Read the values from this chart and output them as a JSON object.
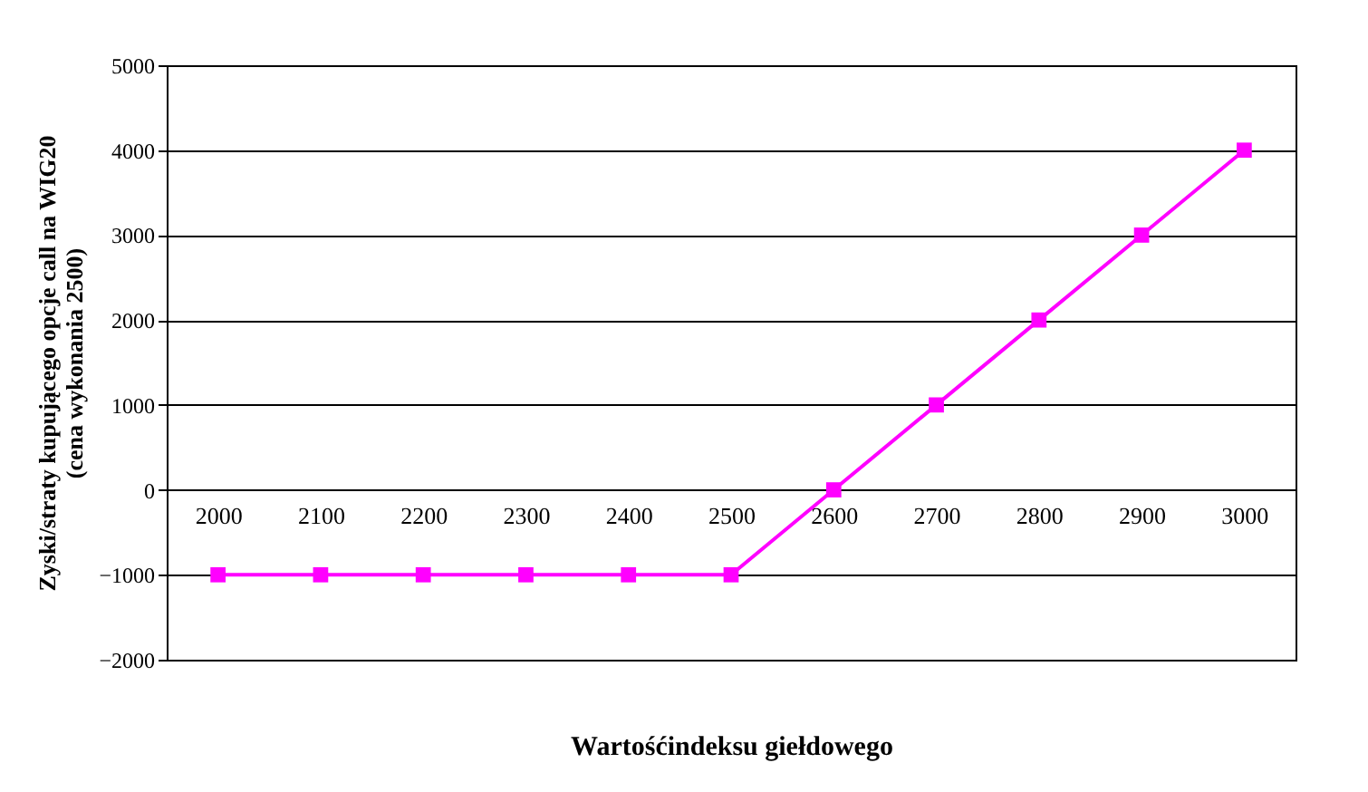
{
  "chart_data": {
    "type": "line",
    "xlabel": "Wartośćindeksu giełdowego",
    "ylabel": "Zyski/straty kupującego opcje call na WIG20\n(cena wykonania 2500)",
    "categories": [
      "2000",
      "2100",
      "2200",
      "2300",
      "2400",
      "2500",
      "2600",
      "2700",
      "2800",
      "2900",
      "3000"
    ],
    "series": [
      {
        "color": "#ff00ff",
        "values": [
          -1000,
          -1000,
          -1000,
          -1000,
          -1000,
          -1000,
          0,
          1000,
          2000,
          3000,
          4000
        ]
      }
    ],
    "ylim": [
      -2000,
      5000
    ],
    "yticks": [
      -2000,
      -1000,
      0,
      1000,
      2000,
      3000,
      4000,
      5000
    ],
    "grid": "y",
    "marker": "square",
    "line_style": "solid",
    "legend": false
  }
}
